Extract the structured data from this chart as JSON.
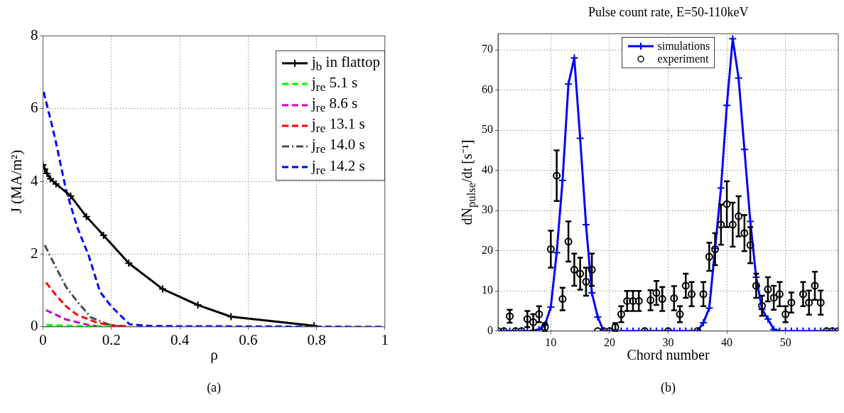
{
  "chart_data": [
    {
      "type": "line",
      "xlabel": "ρ",
      "ylabel": "J (MA/m²)",
      "xlim": [
        0,
        1
      ],
      "xticks": [
        0,
        0.2,
        0.4,
        0.6,
        0.8,
        1
      ],
      "ylim": [
        0,
        8
      ],
      "yticks": [
        0,
        2,
        4,
        6,
        8
      ],
      "grid": true,
      "legend": "top right",
      "annotations": [
        "(a)"
      ],
      "series": [
        {
          "name": "j$_{b}$ in flattop",
          "color": "#000000",
          "marker": "cross",
          "line_style": "solid",
          "x": [
            0,
            0.005,
            0.012,
            0.022,
            0.038,
            0.081,
            0.127,
            0.177,
            0.251,
            0.35,
            0.453,
            0.55,
            0.793
          ],
          "values": [
            4.46,
            4.34,
            4.22,
            4.07,
            3.93,
            3.6,
            3.03,
            2.52,
            1.75,
            1.04,
            0.6,
            0.28,
            0.03
          ]
        },
        {
          "name": "j$_{re}$  5.1 s",
          "color": "#00ff00",
          "marker": "none",
          "line_style": "dashed",
          "x": [
            0.01,
            0.1,
            0.2
          ],
          "values": [
            0.05,
            0.02,
            0.01
          ]
        },
        {
          "name": "j$_{re}$ 8.6 s",
          "color": "#cc00cc",
          "marker": "none",
          "line_style": "dashed",
          "x": [
            0.009,
            0.068,
            0.134,
            0.167
          ],
          "values": [
            0.46,
            0.2,
            0.05,
            0.01
          ]
        },
        {
          "name": "j$_{re}$ 13.1 s",
          "color": "#ff0000",
          "marker": "none",
          "line_style": "dashed",
          "x": [
            0.009,
            0.04,
            0.068,
            0.1,
            0.154,
            0.19,
            0.25
          ],
          "values": [
            1.22,
            0.85,
            0.56,
            0.33,
            0.13,
            0.05,
            0.01
          ]
        },
        {
          "name": "j$_{re}$ 14.0 s",
          "color": "#4d4d4d",
          "marker": "none",
          "line_style": "dashdot",
          "x": [
            0.005,
            0.035,
            0.068,
            0.1,
            0.14,
            0.19,
            0.23
          ],
          "values": [
            2.25,
            1.69,
            1.09,
            0.7,
            0.26,
            0.07,
            0.01
          ]
        },
        {
          "name": "j$_{re}$ 14.2 s",
          "color": "#0000ff",
          "marker": "none",
          "line_style": "dashed",
          "x": [
            0.002,
            0.018,
            0.035,
            0.068,
            0.1,
            0.134,
            0.167,
            0.2,
            0.253,
            0.32,
            1
          ],
          "values": [
            6.46,
            5.86,
            5.2,
            3.74,
            2.75,
            1.95,
            0.96,
            0.56,
            0.07,
            0.02,
            0
          ]
        }
      ]
    },
    {
      "type": "line",
      "title": "Pulse count rate, E=50-110keV",
      "xlabel": "Chord number",
      "ylabel": "dN$_{pulse}$/dt [s⁻¹]",
      "xlim": [
        1,
        59
      ],
      "xticks": [
        10,
        20,
        30,
        40,
        50
      ],
      "ylim": [
        0,
        74
      ],
      "yticks": [
        0,
        10,
        20,
        30,
        40,
        50,
        60,
        70
      ],
      "grid": true,
      "legend": "top",
      "annotations": [
        "(b)"
      ],
      "x": [
        1,
        2,
        3,
        4,
        5,
        6,
        7,
        8,
        9,
        10,
        11,
        12,
        13,
        14,
        15,
        16,
        17,
        18,
        19,
        20,
        21,
        22,
        23,
        24,
        25,
        26,
        27,
        28,
        29,
        30,
        31,
        32,
        33,
        34,
        35,
        36,
        37,
        38,
        39,
        40,
        41,
        42,
        43,
        44,
        45,
        46,
        47,
        48,
        49,
        50,
        51,
        52,
        53,
        54,
        55,
        56,
        57,
        58,
        59
      ],
      "series": [
        {
          "name": "simulations",
          "type": "line",
          "color": "#0000ff",
          "marker": "cross",
          "line_style": "solid",
          "values": [
            0,
            0,
            0,
            0,
            0,
            0,
            0,
            0.4,
            1.5,
            6,
            19.5,
            37.5,
            61.5,
            68,
            48,
            26.5,
            9.5,
            3.5,
            0,
            0,
            0,
            0,
            0,
            0,
            0,
            0,
            0,
            0,
            0,
            0,
            0,
            0,
            0,
            0,
            0,
            2.1,
            5.7,
            20.6,
            35.6,
            56.2,
            72.8,
            63,
            45.2,
            27.3,
            13.4,
            5.4,
            3,
            0.4,
            0,
            0,
            0,
            0,
            0,
            0,
            0,
            0,
            0,
            0,
            0
          ]
        },
        {
          "name": "experiment",
          "type": "scatter",
          "color": "#000000",
          "marker": "circle",
          "values": [
            0,
            0,
            3.7,
            0,
            0,
            3.0,
            2.2,
            4.2,
            1.0,
            20.4,
            38.7,
            8.0,
            22.3,
            15.3,
            14.3,
            12.3,
            15.3,
            0,
            0,
            0,
            1.0,
            4.2,
            7.5,
            7.5,
            7.5,
            0,
            7.7,
            9.5,
            8.0,
            0,
            8.2,
            4.2,
            11.3,
            9.2,
            0,
            9.2,
            18.5,
            20.4,
            26.5,
            31.6,
            26.5,
            28.6,
            24.4,
            21.4,
            11.3,
            6.3,
            10.4,
            8.3,
            9.2,
            4.2,
            7.1,
            null,
            9.2,
            7.1,
            11.3,
            7.1,
            0,
            0,
            0
          ],
          "errors": [
            null,
            null,
            1.6,
            null,
            null,
            2,
            2,
            2,
            1,
            4.6,
            6.3,
            2.8,
            5,
            4,
            4,
            3.5,
            4,
            null,
            null,
            null,
            1,
            2,
            2.5,
            2.5,
            2.5,
            null,
            2.5,
            3,
            3,
            null,
            3,
            2,
            3,
            3,
            null,
            3,
            3.5,
            4,
            5,
            5.7,
            5.5,
            5,
            4.5,
            4.5,
            3,
            2.5,
            3,
            3,
            3,
            2,
            2.5,
            null,
            3,
            3,
            3.5,
            3,
            null,
            null,
            null
          ]
        }
      ]
    }
  ]
}
